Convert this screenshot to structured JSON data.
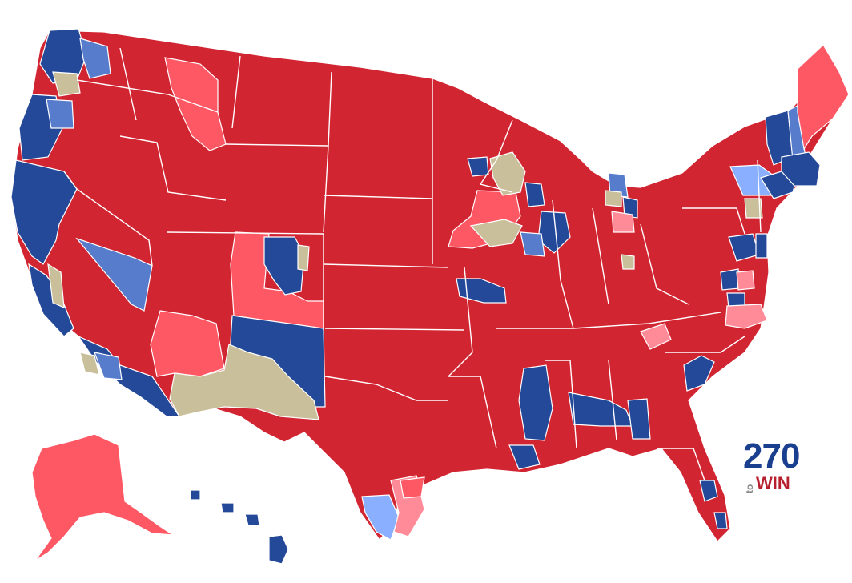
{
  "map": {
    "colors": {
      "background": "#ffffff",
      "border": "#ffffff",
      "safe_r": "#d22532",
      "likely_r": "#ff5865",
      "leans_r": "#ff8b98",
      "tossup": "#c9c09b",
      "leans_d": "#8aafff",
      "likely_d": "#577ccc",
      "safe_d": "#244999"
    }
  },
  "logo": {
    "number": "270",
    "small": "to",
    "word": "WIN",
    "colors": {
      "number": "#1a3f8e",
      "small": "#888888",
      "word": "#b81f2e"
    }
  }
}
